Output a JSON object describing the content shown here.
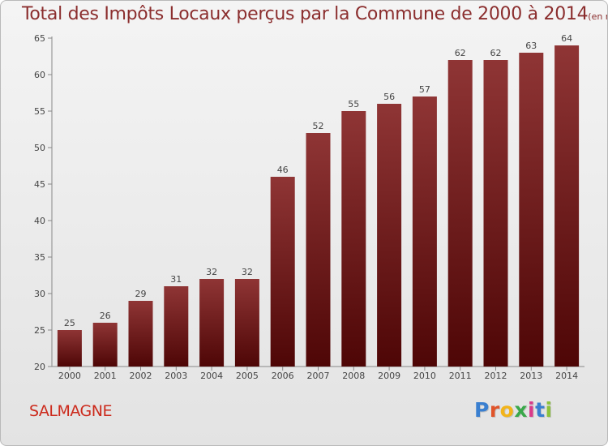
{
  "chart_data": {
    "type": "bar",
    "title": "Total des Impôts Locaux perçus par la Commune de 2000 à 2014",
    "subtitle": "(en milliers d'€)",
    "categories": [
      "2000",
      "2001",
      "2002",
      "2003",
      "2004",
      "2005",
      "2006",
      "2007",
      "2008",
      "2009",
      "2010",
      "2011",
      "2012",
      "2013",
      "2014"
    ],
    "values": [
      25,
      26,
      29,
      31,
      32,
      32,
      46,
      52,
      55,
      56,
      57,
      62,
      62,
      63,
      64
    ],
    "ylim": [
      20,
      65
    ],
    "yticks": [
      20,
      25,
      30,
      35,
      40,
      45,
      50,
      55,
      60,
      65
    ],
    "grid": "none",
    "bar_color": "#7a1c1c"
  },
  "commune_name": "SALMAGNE",
  "logo": {
    "letters": [
      "P",
      "r",
      "o",
      "x",
      "i",
      "t",
      "i"
    ],
    "colors": [
      "#3a7fd0",
      "#e0542a",
      "#f2b41a",
      "#3aa84a",
      "#d93a8a",
      "#3a7fd0",
      "#8cc23a"
    ]
  }
}
